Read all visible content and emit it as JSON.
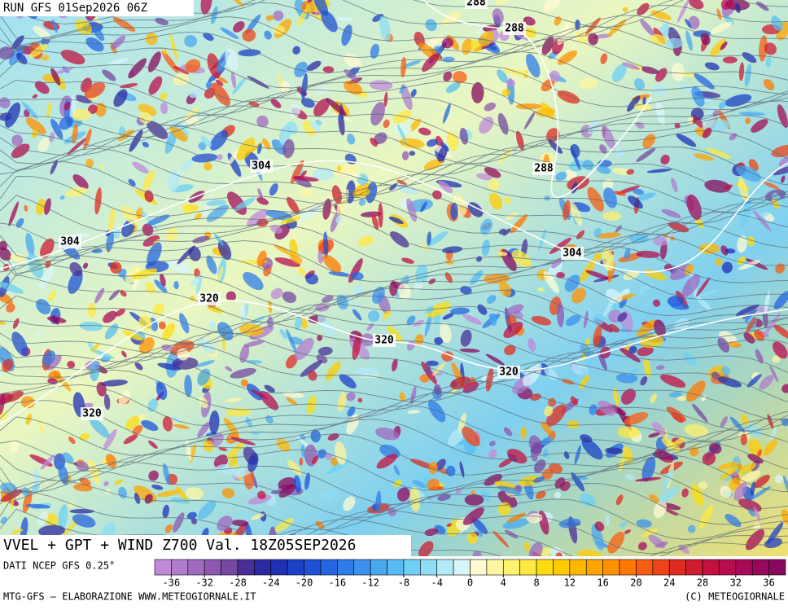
{
  "header": {
    "run": "RUN GFS 01Sep2026 06Z"
  },
  "map": {
    "title": "VVEL + GPT + WIND Z700 Val. 18Z05SEP2026",
    "contour_labels": [
      288,
      288,
      304,
      288,
      304,
      304,
      320,
      320,
      320,
      320
    ]
  },
  "legend": {
    "source": "DATI NCEP GFS 0.25°",
    "bounds": [
      -38,
      -36,
      -34,
      -32,
      -30,
      -28,
      -26,
      -24,
      -22,
      -20,
      -18,
      -16,
      -14,
      -12,
      -10,
      -8,
      -6,
      -4,
      -2,
      0,
      2,
      4,
      6,
      8,
      10,
      12,
      14,
      16,
      18,
      20,
      22,
      24,
      26,
      28,
      30,
      32,
      34,
      36,
      38
    ],
    "colors": [
      "#c08ad8",
      "#b07cce",
      "#a06ac0",
      "#8e58b0",
      "#7648a0",
      "#4a2e98",
      "#2c2aa0",
      "#1f30b4",
      "#1c40c8",
      "#1e50d8",
      "#2466e2",
      "#2e7ce8",
      "#3a92ee",
      "#48a8f0",
      "#58bcf2",
      "#6ed0f4",
      "#8edef6",
      "#b4eaf8",
      "#d8f6fa",
      "#fffbd0",
      "#fff6a0",
      "#fff070",
      "#ffe840",
      "#ffdc10",
      "#ffcc00",
      "#ffb800",
      "#ffa400",
      "#ff9000",
      "#ff7800",
      "#f85e10",
      "#ee4418",
      "#e02c20",
      "#d01c30",
      "#c41040",
      "#b80c50",
      "#a80a58",
      "#98085c",
      "#88085e"
    ],
    "ticks": [
      -36,
      -32,
      -28,
      -24,
      -20,
      -16,
      -12,
      -8,
      -4,
      0,
      4,
      8,
      12,
      16,
      20,
      24,
      28,
      32,
      36
    ]
  },
  "footer": {
    "left": "MTG-GFS — ELABORAZIONE WWW.METEOGIORNALE.IT",
    "right": "(C) METEOGIORNALE"
  }
}
